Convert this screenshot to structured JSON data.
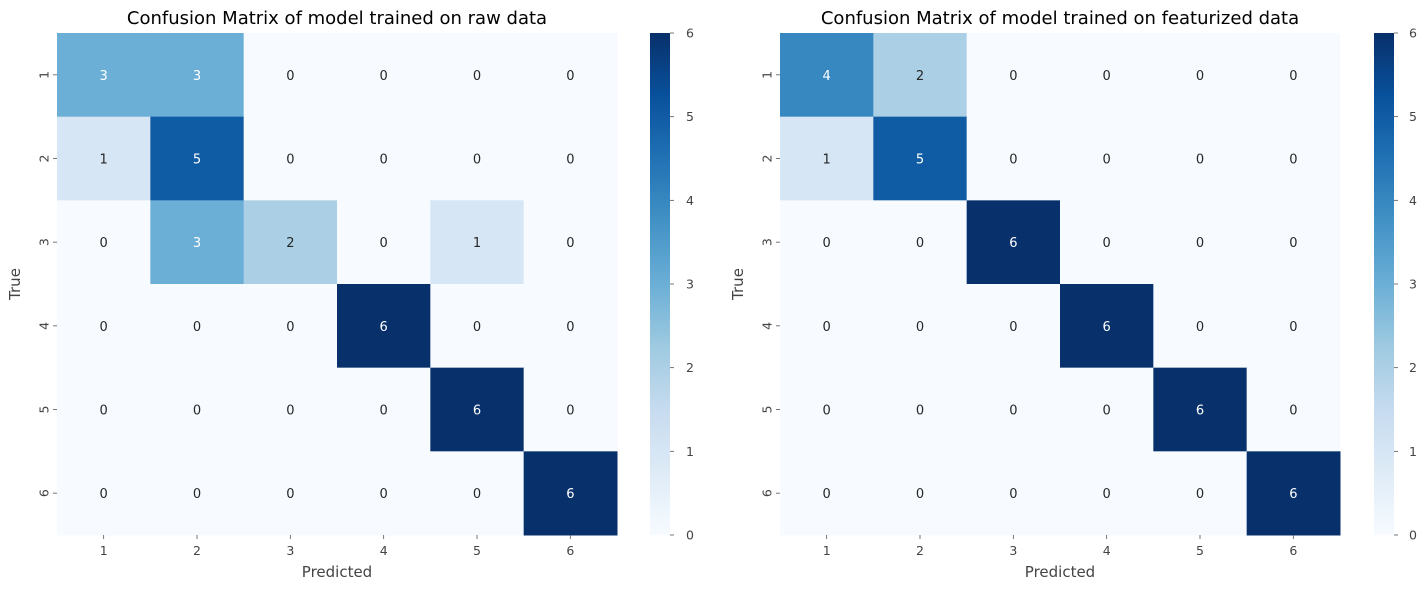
{
  "chart_data": [
    {
      "type": "heatmap",
      "title": "Confusion Matrix of model trained on raw data",
      "xlabel": "Predicted",
      "ylabel": "True",
      "x_categories": [
        "1",
        "2",
        "3",
        "4",
        "5",
        "6"
      ],
      "y_categories": [
        "1",
        "2",
        "3",
        "4",
        "5",
        "6"
      ],
      "matrix": [
        [
          3,
          3,
          0,
          0,
          0,
          0
        ],
        [
          1,
          5,
          0,
          0,
          0,
          0
        ],
        [
          0,
          3,
          2,
          0,
          1,
          0
        ],
        [
          0,
          0,
          0,
          6,
          0,
          0
        ],
        [
          0,
          0,
          0,
          0,
          6,
          0
        ],
        [
          0,
          0,
          0,
          0,
          0,
          6
        ]
      ],
      "colorbar": {
        "min": 0,
        "max": 6,
        "ticks": [
          "0",
          "1",
          "2",
          "3",
          "4",
          "5",
          "6"
        ],
        "colormap": "Blues"
      }
    },
    {
      "type": "heatmap",
      "title": "Confusion Matrix of model trained on featurized data",
      "xlabel": "Predicted",
      "ylabel": "True",
      "x_categories": [
        "1",
        "2",
        "3",
        "4",
        "5",
        "6"
      ],
      "y_categories": [
        "1",
        "2",
        "3",
        "4",
        "5",
        "6"
      ],
      "matrix": [
        [
          4,
          2,
          0,
          0,
          0,
          0
        ],
        [
          1,
          5,
          0,
          0,
          0,
          0
        ],
        [
          0,
          0,
          6,
          0,
          0,
          0
        ],
        [
          0,
          0,
          0,
          6,
          0,
          0
        ],
        [
          0,
          0,
          0,
          0,
          6,
          0
        ],
        [
          0,
          0,
          0,
          0,
          0,
          6
        ]
      ],
      "colorbar": {
        "min": 0,
        "max": 6,
        "ticks": [
          "0",
          "1",
          "2",
          "3",
          "4",
          "5",
          "6"
        ],
        "colormap": "Blues"
      }
    }
  ],
  "colors": {
    "scale": [
      "#f7fbff",
      "#deebf7",
      "#c6dbef",
      "#9ecae1",
      "#6baed6",
      "#4292c6",
      "#2171b5",
      "#08519c",
      "#08306b"
    ],
    "annotation_light": "#ffffff",
    "annotation_dark": "#262626"
  }
}
